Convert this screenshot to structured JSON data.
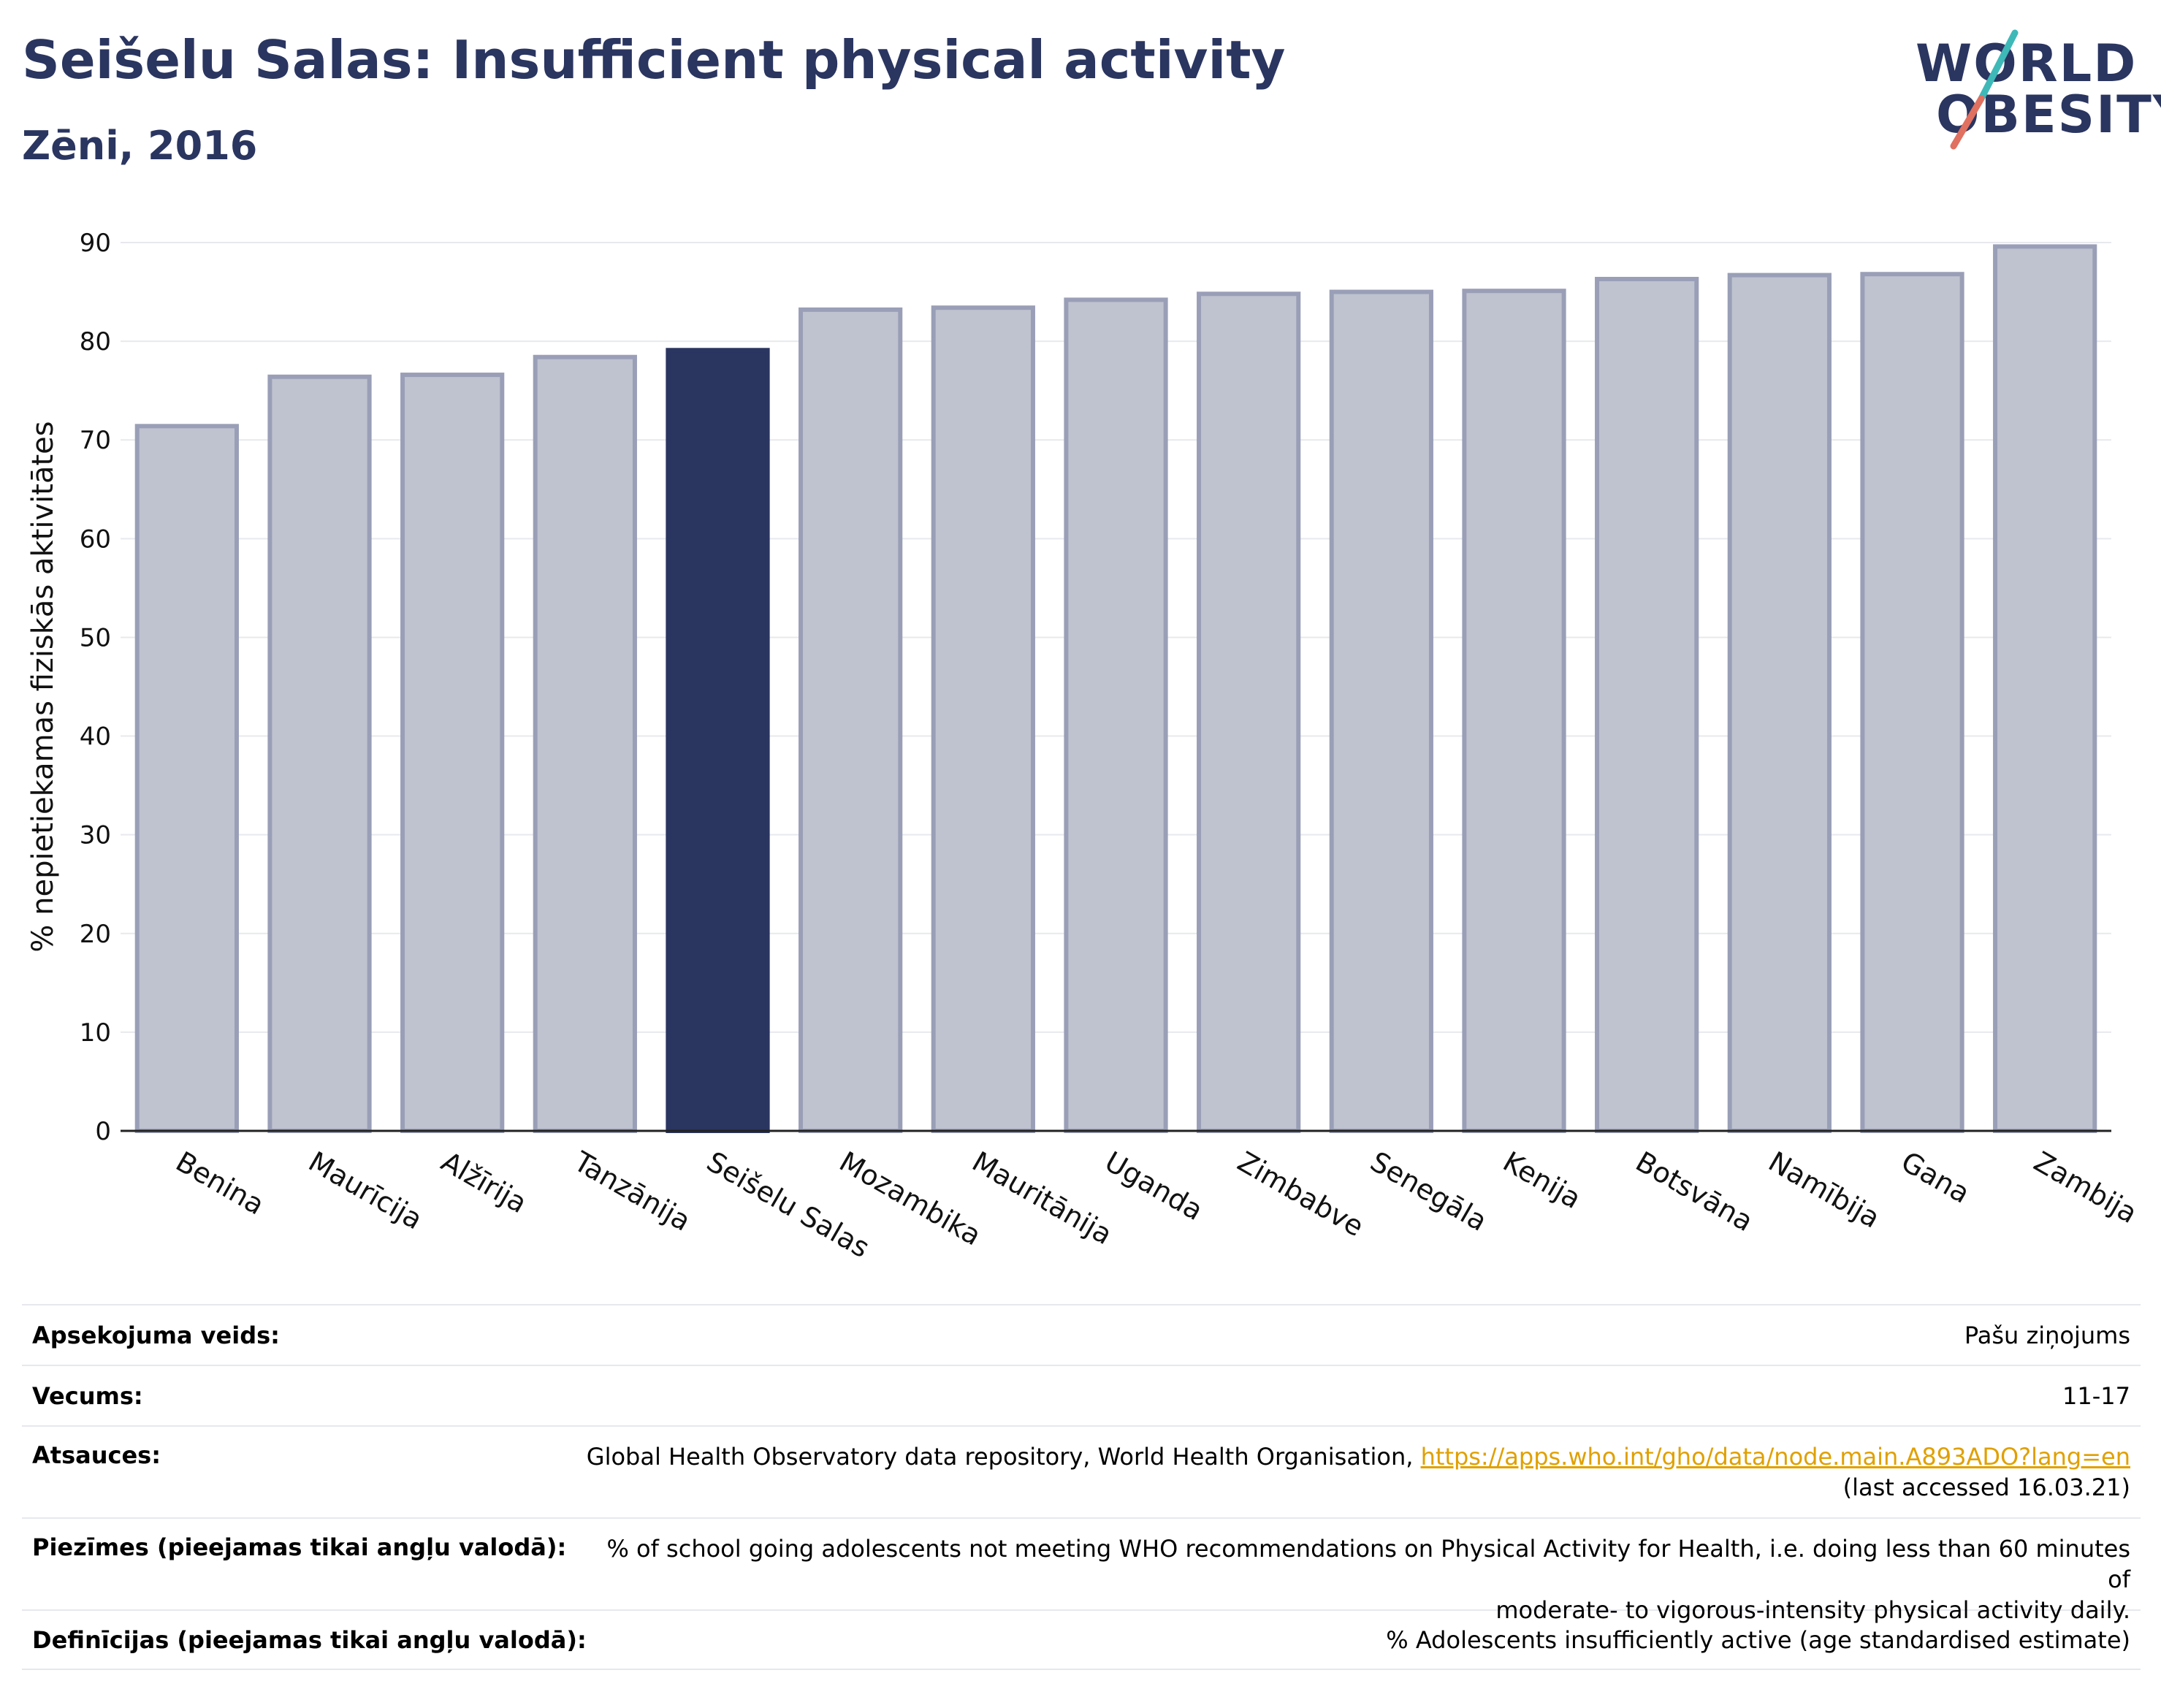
{
  "header": {
    "title": "Seišelu Salas: Insufficient physical activity",
    "subtitle": "Zēni, 2016"
  },
  "logo": {
    "line1": "WORLD",
    "line2": "OBESITY"
  },
  "colors": {
    "highlight": "#2a3560",
    "bar": "#bfc3cf",
    "bar_border": "#9a9fb7",
    "accent_teal": "#3fb8b8",
    "accent_red": "#e07060"
  },
  "chart_data": {
    "type": "bar",
    "title": "Seišelu Salas: Insufficient physical activity",
    "subtitle": "Zēni, 2016",
    "xlabel": "",
    "ylabel": "% nepietiekamas fiziskās aktivitātes",
    "ylim": [
      0,
      90
    ],
    "yticks": [
      0,
      10,
      20,
      30,
      40,
      50,
      60,
      70,
      80,
      90
    ],
    "grid": true,
    "highlight": "Seišelu Salas",
    "categories": [
      "Benina",
      "Maurīcija",
      "Alžīrija",
      "Tanzānija",
      "Seišelu Salas",
      "Mozambika",
      "Mauritānija",
      "Uganda",
      "Zimbabve",
      "Senegāla",
      "Kenija",
      "Botsvāna",
      "Namībija",
      "Gana",
      "Zambija"
    ],
    "values": [
      71.4,
      76.4,
      76.6,
      78.4,
      79.1,
      83.2,
      83.4,
      84.2,
      84.8,
      85.0,
      85.1,
      86.3,
      86.7,
      86.8,
      89.6
    ]
  },
  "info": {
    "rows": [
      {
        "key": "Apsekojuma veids:",
        "value": "Pašu ziņojums"
      },
      {
        "key": "Vecums:",
        "value": "11-17"
      },
      {
        "key": "Atsauces:",
        "value": "Global Health Observatory data repository, World Health Organisation, ",
        "link": "https://apps.who.int/gho/data/node.main.A893ADO?lang=en",
        "value2": "(last accessed 16.03.21)"
      },
      {
        "key": "Piezīmes (pieejamas tikai angļu valodā):",
        "value": "% of school going adolescents not meeting WHO recommendations on Physical Activity for Health, i.e. doing less than 60 minutes of",
        "value2": "moderate- to vigorous-intensity physical activity daily."
      },
      {
        "key": "Definīcijas (pieejamas tikai angļu valodā):",
        "value": "% Adolescents insufficiently active (age standardised estimate)"
      }
    ]
  }
}
